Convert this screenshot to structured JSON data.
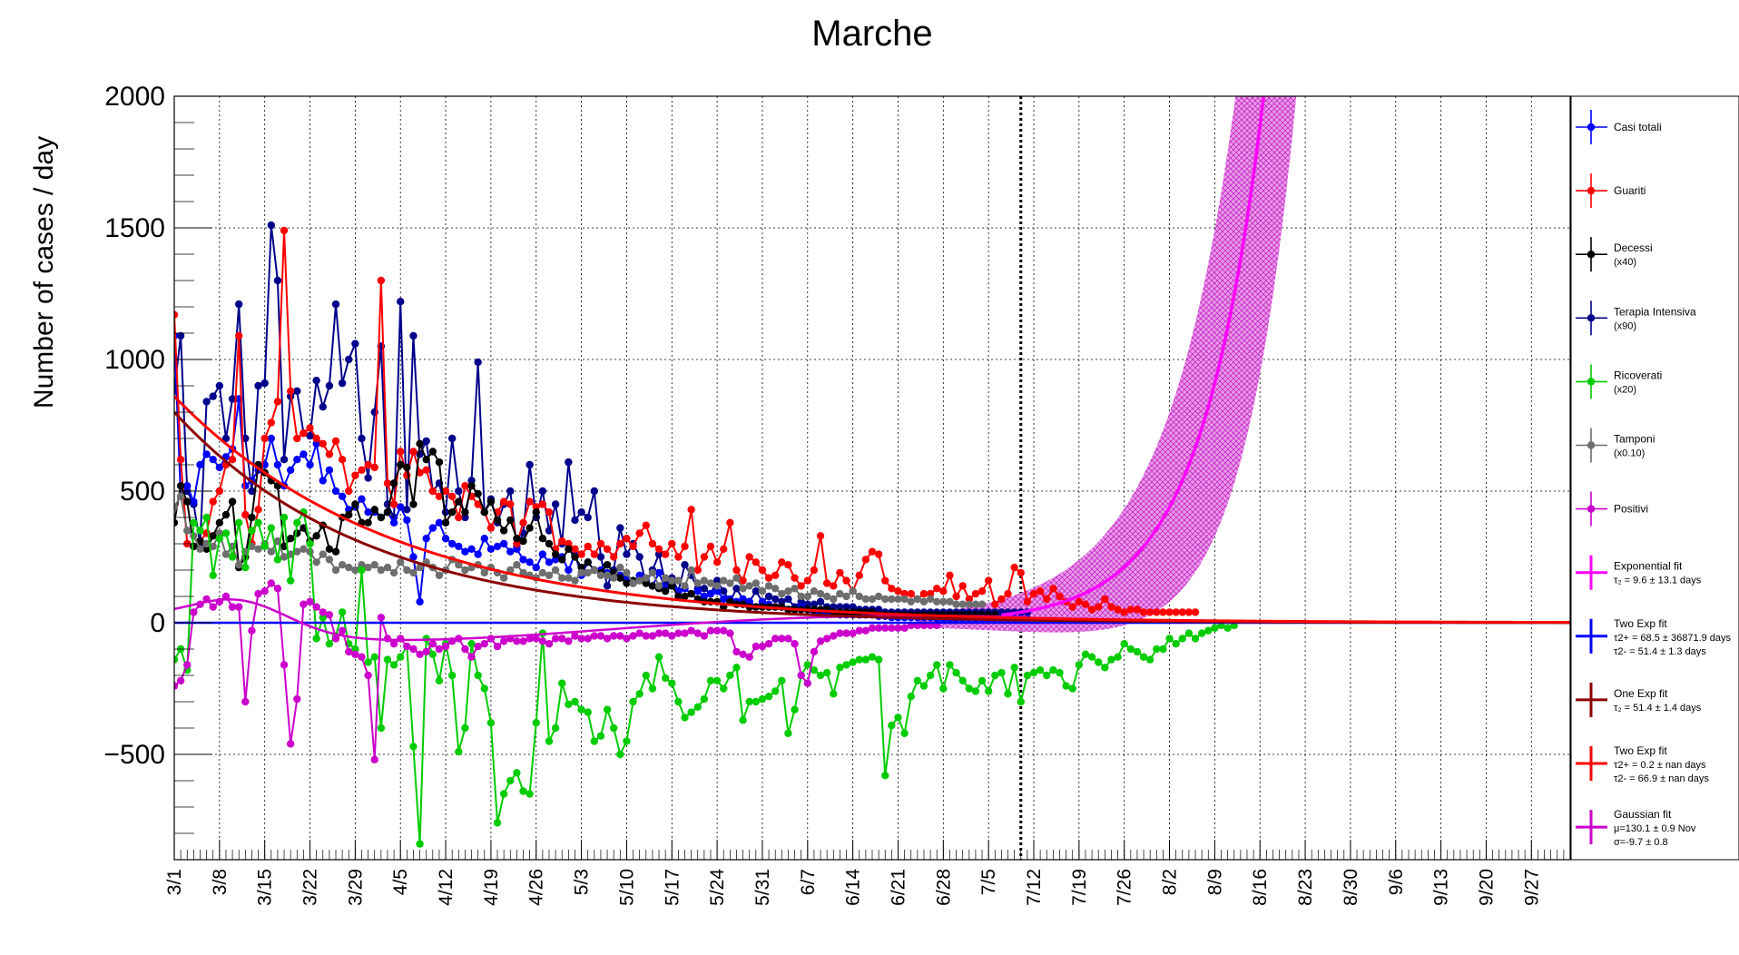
{
  "chart_data": {
    "type": "line",
    "title": "Marche",
    "ylabel": "Number of cases / day",
    "xlabel": "",
    "x_unit": "date (day of year 2020, day 0 = 3/1)",
    "xlim": [
      "3/1",
      "10/3"
    ],
    "ylim": [
      -900,
      2000
    ],
    "yticks": [
      -500,
      0,
      500,
      1000,
      1500,
      2000
    ],
    "ytick_labels": [
      "−500",
      "0",
      "500",
      "1000",
      "1500",
      "2000"
    ],
    "xtick_labels": [
      "3/1",
      "3/8",
      "3/15",
      "3/22",
      "3/29",
      "4/5",
      "4/12",
      "4/19",
      "4/26",
      "5/3",
      "5/10",
      "5/17",
      "5/24",
      "5/31",
      "6/7",
      "6/14",
      "6/21",
      "6/28",
      "7/5",
      "7/12",
      "7/19",
      "7/26",
      "8/2",
      "8/9",
      "8/16",
      "8/23",
      "8/30",
      "9/6",
      "9/13",
      "9/20",
      "9/27"
    ],
    "grid": true,
    "vline_date": "7/10",
    "legend_position": "right",
    "colors": {
      "casi_totali": "#0000ff",
      "guariti": "#ff0000",
      "decessi": "#000000",
      "terapia": "#00008b",
      "ricoverati": "#00cc00",
      "tamponi": "#6e6e6e",
      "positivi": "#cc00cc",
      "exp_fit": "#ff00ff",
      "two_exp_blue": "#0000ff",
      "one_exp": "#8b0000",
      "two_exp_red": "#ff0000",
      "gauss": "#cc00cc",
      "band": "#d633d6"
    },
    "series": [
      {
        "key": "terapia",
        "name": "Terapia Intensiva",
        "sub": "(x90)",
        "x0": 0,
        "values": [
          880,
          1090,
          500,
          450,
          300,
          840,
          860,
          900,
          700,
          850,
          1210,
          700,
          500,
          900,
          910,
          1510,
          1300,
          620,
          860,
          880,
          720,
          710,
          920,
          820,
          900,
          1210,
          910,
          1000,
          1060,
          700,
          550,
          800,
          1050,
          450,
          400,
          1220,
          430,
          1090,
          640,
          690,
          500,
          530,
          420,
          700,
          500,
          400,
          540,
          990,
          420,
          470,
          380,
          450,
          500,
          290,
          340,
          600,
          400,
          500,
          350,
          450,
          300,
          610,
          390,
          420,
          400,
          500,
          250,
          140,
          200,
          360,
          260,
          300,
          250,
          150,
          200,
          260,
          150,
          170,
          120,
          220,
          180,
          130,
          130,
          110,
          160,
          120,
          80,
          130,
          90,
          80,
          120,
          80,
          100,
          90,
          80,
          90,
          60,
          80,
          70,
          70,
          80,
          60,
          60,
          60,
          60,
          60,
          50,
          50,
          50,
          50,
          40,
          40,
          40,
          40,
          40,
          40,
          40,
          40,
          40,
          40,
          40,
          40,
          40,
          40,
          40,
          40,
          40,
          40,
          40,
          40,
          40,
          40,
          40
        ]
      },
      {
        "key": "casi_totali",
        "name": "Casi totali",
        "sub": "",
        "x0": 0,
        "values": [
          1090,
          480,
          520,
          460,
          600,
          640,
          620,
          590,
          630,
          660,
          850,
          520,
          540,
          580,
          600,
          700,
          600,
          520,
          580,
          620,
          640,
          600,
          680,
          540,
          580,
          500,
          480,
          430,
          440,
          470,
          420,
          420,
          400,
          420,
          380,
          440,
          390,
          250,
          80,
          320,
          360,
          380,
          320,
          300,
          290,
          270,
          280,
          260,
          320,
          280,
          290,
          300,
          270,
          280,
          240,
          230,
          210,
          260,
          230,
          240,
          250,
          200,
          260,
          180,
          230,
          200,
          200,
          190,
          180,
          180,
          170,
          150,
          180,
          160,
          140,
          190,
          130,
          140,
          120,
          130,
          110,
          120,
          100,
          110,
          120,
          90,
          90,
          80,
          90,
          80,
          60,
          80,
          70,
          60,
          60,
          50,
          50,
          60,
          50,
          40,
          40,
          30,
          40,
          30,
          30,
          30,
          30,
          30,
          30,
          25,
          25,
          20,
          20,
          20,
          20,
          20,
          20,
          20,
          15,
          15,
          15,
          15,
          15,
          15,
          15,
          15,
          15,
          15,
          15,
          15,
          15,
          15,
          15
        ]
      },
      {
        "key": "guariti",
        "name": "Guariti",
        "sub": "",
        "x0": 0,
        "values": [
          1170,
          620,
          300,
          290,
          310,
          340,
          460,
          500,
          600,
          620,
          1090,
          410,
          300,
          430,
          700,
          760,
          840,
          1490,
          880,
          700,
          720,
          740,
          700,
          680,
          640,
          690,
          620,
          500,
          560,
          580,
          600,
          590,
          1300,
          530,
          450,
          650,
          560,
          650,
          570,
          580,
          500,
          480,
          500,
          480,
          400,
          520,
          480,
          450,
          420,
          360,
          420,
          460,
          450,
          300,
          380,
          460,
          440,
          450,
          420,
          280,
          310,
          300,
          280,
          260,
          290,
          260,
          300,
          280,
          250,
          300,
          320,
          290,
          340,
          370,
          300,
          280,
          260,
          300,
          250,
          290,
          430,
          200,
          250,
          290,
          230,
          280,
          380,
          200,
          160,
          250,
          230,
          200,
          170,
          180,
          230,
          220,
          170,
          140,
          160,
          200,
          330,
          150,
          140,
          190,
          160,
          120,
          180,
          240,
          270,
          260,
          160,
          130,
          120,
          110,
          110,
          90,
          110,
          110,
          130,
          120,
          180,
          100,
          140,
          90,
          110,
          120,
          160,
          70,
          90,
          110,
          210,
          190,
          80,
          110,
          120,
          90,
          130,
          100,
          80,
          60,
          80,
          70,
          50,
          60,
          90,
          60,
          50,
          40,
          50,
          50,
          40,
          40,
          40,
          40,
          40,
          40,
          40,
          40,
          40
        ]
      },
      {
        "key": "decessi",
        "name": "Decessi",
        "sub": "(x40)",
        "x0": 0,
        "values": [
          380,
          520,
          460,
          290,
          310,
          280,
          330,
          380,
          410,
          460,
          210,
          250,
          400,
          600,
          570,
          540,
          520,
          290,
          320,
          340,
          360,
          310,
          330,
          370,
          280,
          270,
          400,
          410,
          450,
          380,
          380,
          430,
          400,
          420,
          530,
          600,
          590,
          450,
          680,
          620,
          650,
          610,
          380,
          420,
          460,
          420,
          520,
          490,
          420,
          460,
          390,
          350,
          390,
          320,
          310,
          360,
          420,
          320,
          300,
          260,
          240,
          280,
          250,
          210,
          230,
          200,
          190,
          220,
          190,
          170,
          150,
          160,
          160,
          150,
          140,
          130,
          120,
          140,
          100,
          100,
          110,
          90,
          80,
          80,
          80,
          60,
          80,
          70,
          70,
          60,
          60,
          60,
          60,
          60,
          60,
          50,
          50,
          50,
          50,
          50,
          50,
          50,
          40,
          40,
          40,
          40,
          40,
          40,
          40,
          30,
          30,
          30,
          30,
          30,
          30,
          30,
          30,
          30,
          30,
          30,
          30,
          30,
          30,
          30,
          30,
          30,
          30,
          30
        ]
      },
      {
        "key": "tamponi",
        "name": "Tamponi",
        "sub": "(x0.10)",
        "x0": 0,
        "values": [
          440,
          480,
          350,
          330,
          280,
          300,
          290,
          340,
          260,
          290,
          220,
          270,
          290,
          280,
          300,
          270,
          310,
          250,
          260,
          270,
          280,
          270,
          230,
          260,
          240,
          200,
          220,
          210,
          200,
          220,
          210,
          220,
          200,
          210,
          190,
          230,
          200,
          190,
          210,
          230,
          210,
          180,
          200,
          240,
          220,
          200,
          210,
          220,
          190,
          210,
          190,
          170,
          200,
          220,
          190,
          180,
          170,
          190,
          180,
          200,
          170,
          170,
          160,
          190,
          190,
          200,
          180,
          180,
          170,
          210,
          190,
          150,
          160,
          170,
          190,
          140,
          170,
          160,
          160,
          140,
          200,
          150,
          160,
          150,
          140,
          160,
          150,
          170,
          130,
          140,
          150,
          120,
          140,
          130,
          110,
          120,
          130,
          100,
          100,
          120,
          110,
          100,
          90,
          110,
          100,
          120,
          100,
          90,
          90,
          100,
          90,
          90,
          90,
          90,
          80,
          90,
          80,
          90,
          80,
          80,
          80,
          70,
          70,
          70,
          70,
          70
        ]
      },
      {
        "key": "ricoverati",
        "name": "Ricoverati",
        "sub": "(x20)",
        "x0": 0,
        "values": [
          -140,
          -100,
          -180,
          380,
          350,
          400,
          180,
          320,
          340,
          250,
          380,
          210,
          350,
          380,
          290,
          360,
          240,
          400,
          160,
          380,
          420,
          300,
          -60,
          20,
          -80,
          -50,
          40,
          -80,
          -100,
          200,
          -150,
          -130,
          -400,
          -140,
          -160,
          -130,
          -90,
          -470,
          -840,
          -60,
          -120,
          -220,
          -80,
          -200,
          -490,
          -400,
          -80,
          -200,
          -250,
          -380,
          -760,
          -650,
          -600,
          -570,
          -640,
          -650,
          -380,
          -40,
          -450,
          -400,
          -230,
          -310,
          -300,
          -330,
          -340,
          -450,
          -430,
          -330,
          -400,
          -500,
          -450,
          -300,
          -270,
          -200,
          -250,
          -130,
          -210,
          -230,
          -300,
          -360,
          -340,
          -320,
          -290,
          -220,
          -220,
          -250,
          -200,
          -170,
          -370,
          -300,
          -300,
          -290,
          -280,
          -260,
          -220,
          -420,
          -330,
          -200,
          -160,
          -180,
          -200,
          -190,
          -270,
          -170,
          -160,
          -150,
          -140,
          -140,
          -130,
          -140,
          -580,
          -390,
          -360,
          -420,
          -280,
          -220,
          -240,
          -200,
          -160,
          -250,
          -160,
          -190,
          -220,
          -250,
          -260,
          -220,
          -260,
          -200,
          -190,
          -270,
          -170,
          -300,
          -200,
          -190,
          -180,
          -200,
          -180,
          -190,
          -240,
          -250,
          -160,
          -120,
          -130,
          -150,
          -170,
          -140,
          -130,
          -80,
          -100,
          -110,
          -130,
          -140,
          -100,
          -100,
          -60,
          -80,
          -60,
          -40,
          -60,
          -40,
          -30,
          -20,
          -10,
          -20,
          -10
        ]
      },
      {
        "key": "positivi",
        "name": "Positivi",
        "sub": "",
        "x0": 0,
        "values": [
          -240,
          -220,
          -160,
          40,
          70,
          90,
          60,
          80,
          100,
          60,
          60,
          -300,
          -30,
          110,
          120,
          150,
          130,
          -160,
          -460,
          -290,
          70,
          80,
          60,
          40,
          30,
          -60,
          -30,
          -110,
          -120,
          -130,
          -200,
          -520,
          20,
          -60,
          -80,
          -60,
          -90,
          -100,
          -120,
          -110,
          -80,
          -100,
          -90,
          -70,
          -60,
          -100,
          -130,
          -90,
          -80,
          -60,
          -90,
          -70,
          -60,
          -70,
          -70,
          -60,
          -60,
          -70,
          -80,
          -60,
          -60,
          -70,
          -50,
          -60,
          -60,
          -50,
          -50,
          -60,
          -50,
          -50,
          -60,
          -50,
          -40,
          -50,
          -50,
          -40,
          -40,
          -50,
          -40,
          -40,
          -30,
          -40,
          -50,
          -30,
          -30,
          -30,
          -40,
          -110,
          -120,
          -130,
          -90,
          -90,
          -80,
          -60,
          -60,
          -60,
          -80,
          -200,
          -230,
          -110,
          -70,
          -60,
          -50,
          -40,
          -40,
          -40,
          -30,
          -30,
          -20,
          -20,
          -20,
          -20,
          -20,
          -20,
          -10,
          -10,
          -10,
          -10,
          -10
        ]
      }
    ],
    "fits": [
      {
        "key": "exp_fit",
        "name": "Exponential fit",
        "formula": "N = exp((t-t0)/tau2)",
        "tau2": 9.6,
        "tau2_err": 13.1,
        "anchor_day": 131,
        "anchor_value": 40
      },
      {
        "key": "two_exp_blue",
        "name": "Two Exp fit",
        "tau2plus": 68.5,
        "tau2plus_err": 36871.9,
        "tau2minus": 51.4,
        "tau2minus_err": 1.3
      },
      {
        "key": "one_exp",
        "name": "One Exp fit",
        "tau2": 51.4,
        "tau2_err": 1.4,
        "amplitude": 800
      },
      {
        "key": "two_exp_red",
        "name": "Two Exp fit",
        "tau2plus": 0.2,
        "tau2minus": 66.9,
        "amplitude": 860
      },
      {
        "key": "gauss",
        "name": "Gaussian fit",
        "mu": 130.1,
        "mu_err": 0.9,
        "sigma": -9.7,
        "sigma_err": 0.8
      }
    ],
    "legend": [
      {
        "key": "casi_totali",
        "lines": [
          "Casi totali"
        ]
      },
      {
        "key": "guariti",
        "lines": [
          "Guariti"
        ]
      },
      {
        "key": "decessi",
        "lines": [
          "Decessi",
          "(x40)"
        ]
      },
      {
        "key": "terapia",
        "lines": [
          "Terapia Intensiva",
          "(x90)"
        ]
      },
      {
        "key": "ricoverati",
        "lines": [
          "Ricoverati",
          "(x20)"
        ]
      },
      {
        "key": "tamponi",
        "lines": [
          "Tamponi",
          "(x0.10)"
        ]
      },
      {
        "key": "positivi",
        "lines": [
          "Positivi"
        ]
      },
      {
        "key": "exp_fit",
        "lines": [
          "Exponential fit",
          "τ₂ = 9.6  ± 13.1 days"
        ]
      },
      {
        "key": "two_exp_blue",
        "lines": [
          "Two Exp fit",
          "τ2+ = 68.5 ± 36871.9 days",
          "τ2- = 51.4 ± 1.3 days"
        ]
      },
      {
        "key": "one_exp",
        "lines": [
          "One Exp fit",
          "τ₂ = 51.4  ± 1.4 days"
        ]
      },
      {
        "key": "two_exp_red",
        "lines": [
          "Two Exp fit",
          "τ2+ = 0.2 ± nan days",
          "τ2- = 66.9 ± nan days"
        ]
      },
      {
        "key": "gauss",
        "lines": [
          "Gaussian fit",
          "μ=130.1 ± 0.9 Nov",
          "σ=-9.7 ± 0.8"
        ]
      }
    ]
  }
}
